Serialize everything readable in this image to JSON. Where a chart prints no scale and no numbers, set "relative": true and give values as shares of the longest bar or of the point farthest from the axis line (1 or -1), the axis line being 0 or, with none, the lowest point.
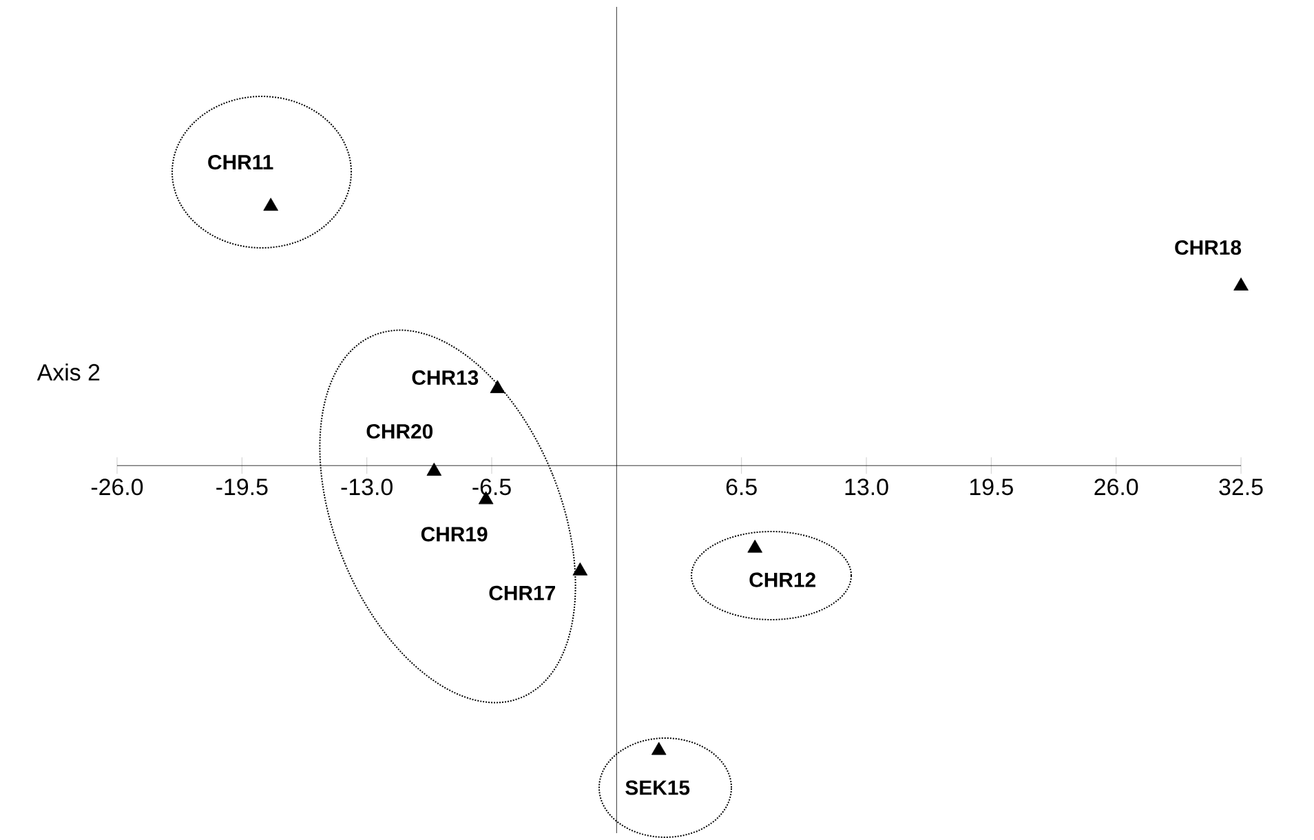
{
  "chart_data": {
    "type": "scatter",
    "ylabel": "Axis 2",
    "relative": true,
    "color": "#000000",
    "marker": "triangle",
    "grid": false,
    "tick_labels": "x",
    "x": [
      -18.0,
      32.5,
      -6.2,
      -9.5,
      -6.8,
      -1.9,
      7.2,
      2.2
    ],
    "values": [
      0.91,
      0.63,
      0.27,
      -0.02,
      -0.12,
      -0.37,
      -0.29,
      -1
    ],
    "xlim": [
      -26.0,
      32.5
    ],
    "xticks": [
      {
        "value": -26,
        "label": "-26.0"
      },
      {
        "value": -19.5,
        "label": "-19.5"
      },
      {
        "value": -13,
        "label": "-13.0"
      },
      {
        "value": -6.5,
        "label": "-6.5"
      },
      {
        "value": 6.5,
        "label": "6.5"
      },
      {
        "value": 13,
        "label": "13.0"
      },
      {
        "value": 19.5,
        "label": "19.5"
      },
      {
        "value": 26,
        "label": "26.0"
      },
      {
        "value": 32.5,
        "label": "32.5"
      }
    ],
    "annotations": [
      {
        "text": "CHR11",
        "x": -18.0,
        "y": 0.91
      },
      {
        "text": "CHR18",
        "x": 32.5,
        "y": 0.63
      },
      {
        "text": "CHR13",
        "x": -6.2,
        "y": 0.27
      },
      {
        "text": "CHR20",
        "x": -9.5,
        "y": -0.02
      },
      {
        "text": "CHR19",
        "x": -6.8,
        "y": -0.12
      },
      {
        "text": "CHR17",
        "x": -1.9,
        "y": -0.37
      },
      {
        "text": "CHR12",
        "x": 7.2,
        "y": -0.29
      },
      {
        "text": "SEK15",
        "x": 2.2,
        "y": -1
      }
    ]
  }
}
